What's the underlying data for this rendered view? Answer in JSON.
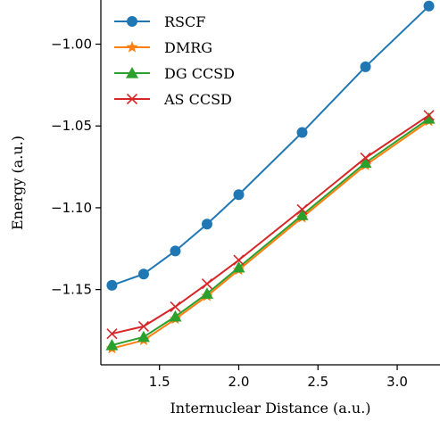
{
  "chart_data": {
    "type": "line",
    "xlabel": "Internuclear Distance (a.u.)",
    "ylabel": "Energy (a.u.)",
    "xlim": [
      1.13,
      3.27
    ],
    "ylim": [
      -1.196,
      -0.973
    ],
    "xticks": [
      1.5,
      2.0,
      2.5,
      3.0
    ],
    "xtick_labels": [
      "1.5",
      "2.0",
      "2.5",
      "3.0"
    ],
    "yticks": [
      -1.0,
      -1.05,
      -1.1,
      -1.15
    ],
    "ytick_labels": [
      "−1.00",
      "−1.05",
      "−1.10",
      "−1.15"
    ],
    "legend_position": "top-left",
    "grid": false,
    "series": [
      {
        "name": "RSCF",
        "marker": "circle",
        "color": "#1f77b4",
        "x": [
          1.2,
          1.4,
          1.6,
          1.8,
          2.0,
          2.4,
          2.8,
          3.2
        ],
        "y": [
          -1.1474,
          -1.1405,
          -1.1264,
          -1.11,
          -1.092,
          -1.054,
          -1.0138,
          -0.9767
        ]
      },
      {
        "name": "DMRG",
        "marker": "star",
        "color": "#ff7f0e",
        "x": [
          1.2,
          1.4,
          1.6,
          1.8,
          2.0,
          2.4,
          2.8,
          3.2
        ],
        "y": [
          -1.186,
          -1.181,
          -1.168,
          -1.154,
          -1.138,
          -1.106,
          -1.074,
          -1.047
        ]
      },
      {
        "name": "DG CCSD",
        "marker": "triangle",
        "color": "#2ca02c",
        "x": [
          1.2,
          1.4,
          1.6,
          1.8,
          2.0,
          2.4,
          2.8,
          3.2
        ],
        "y": [
          -1.184,
          -1.179,
          -1.1665,
          -1.1525,
          -1.1365,
          -1.1045,
          -1.0725,
          -1.0455
        ]
      },
      {
        "name": "AS CCSD",
        "marker": "x",
        "color": "#d62728",
        "x": [
          1.2,
          1.4,
          1.6,
          1.8,
          2.0,
          2.4,
          2.8,
          3.2
        ],
        "y": [
          -1.177,
          -1.1725,
          -1.1605,
          -1.1465,
          -1.132,
          -1.101,
          -1.0695,
          -1.0435
        ]
      }
    ]
  }
}
